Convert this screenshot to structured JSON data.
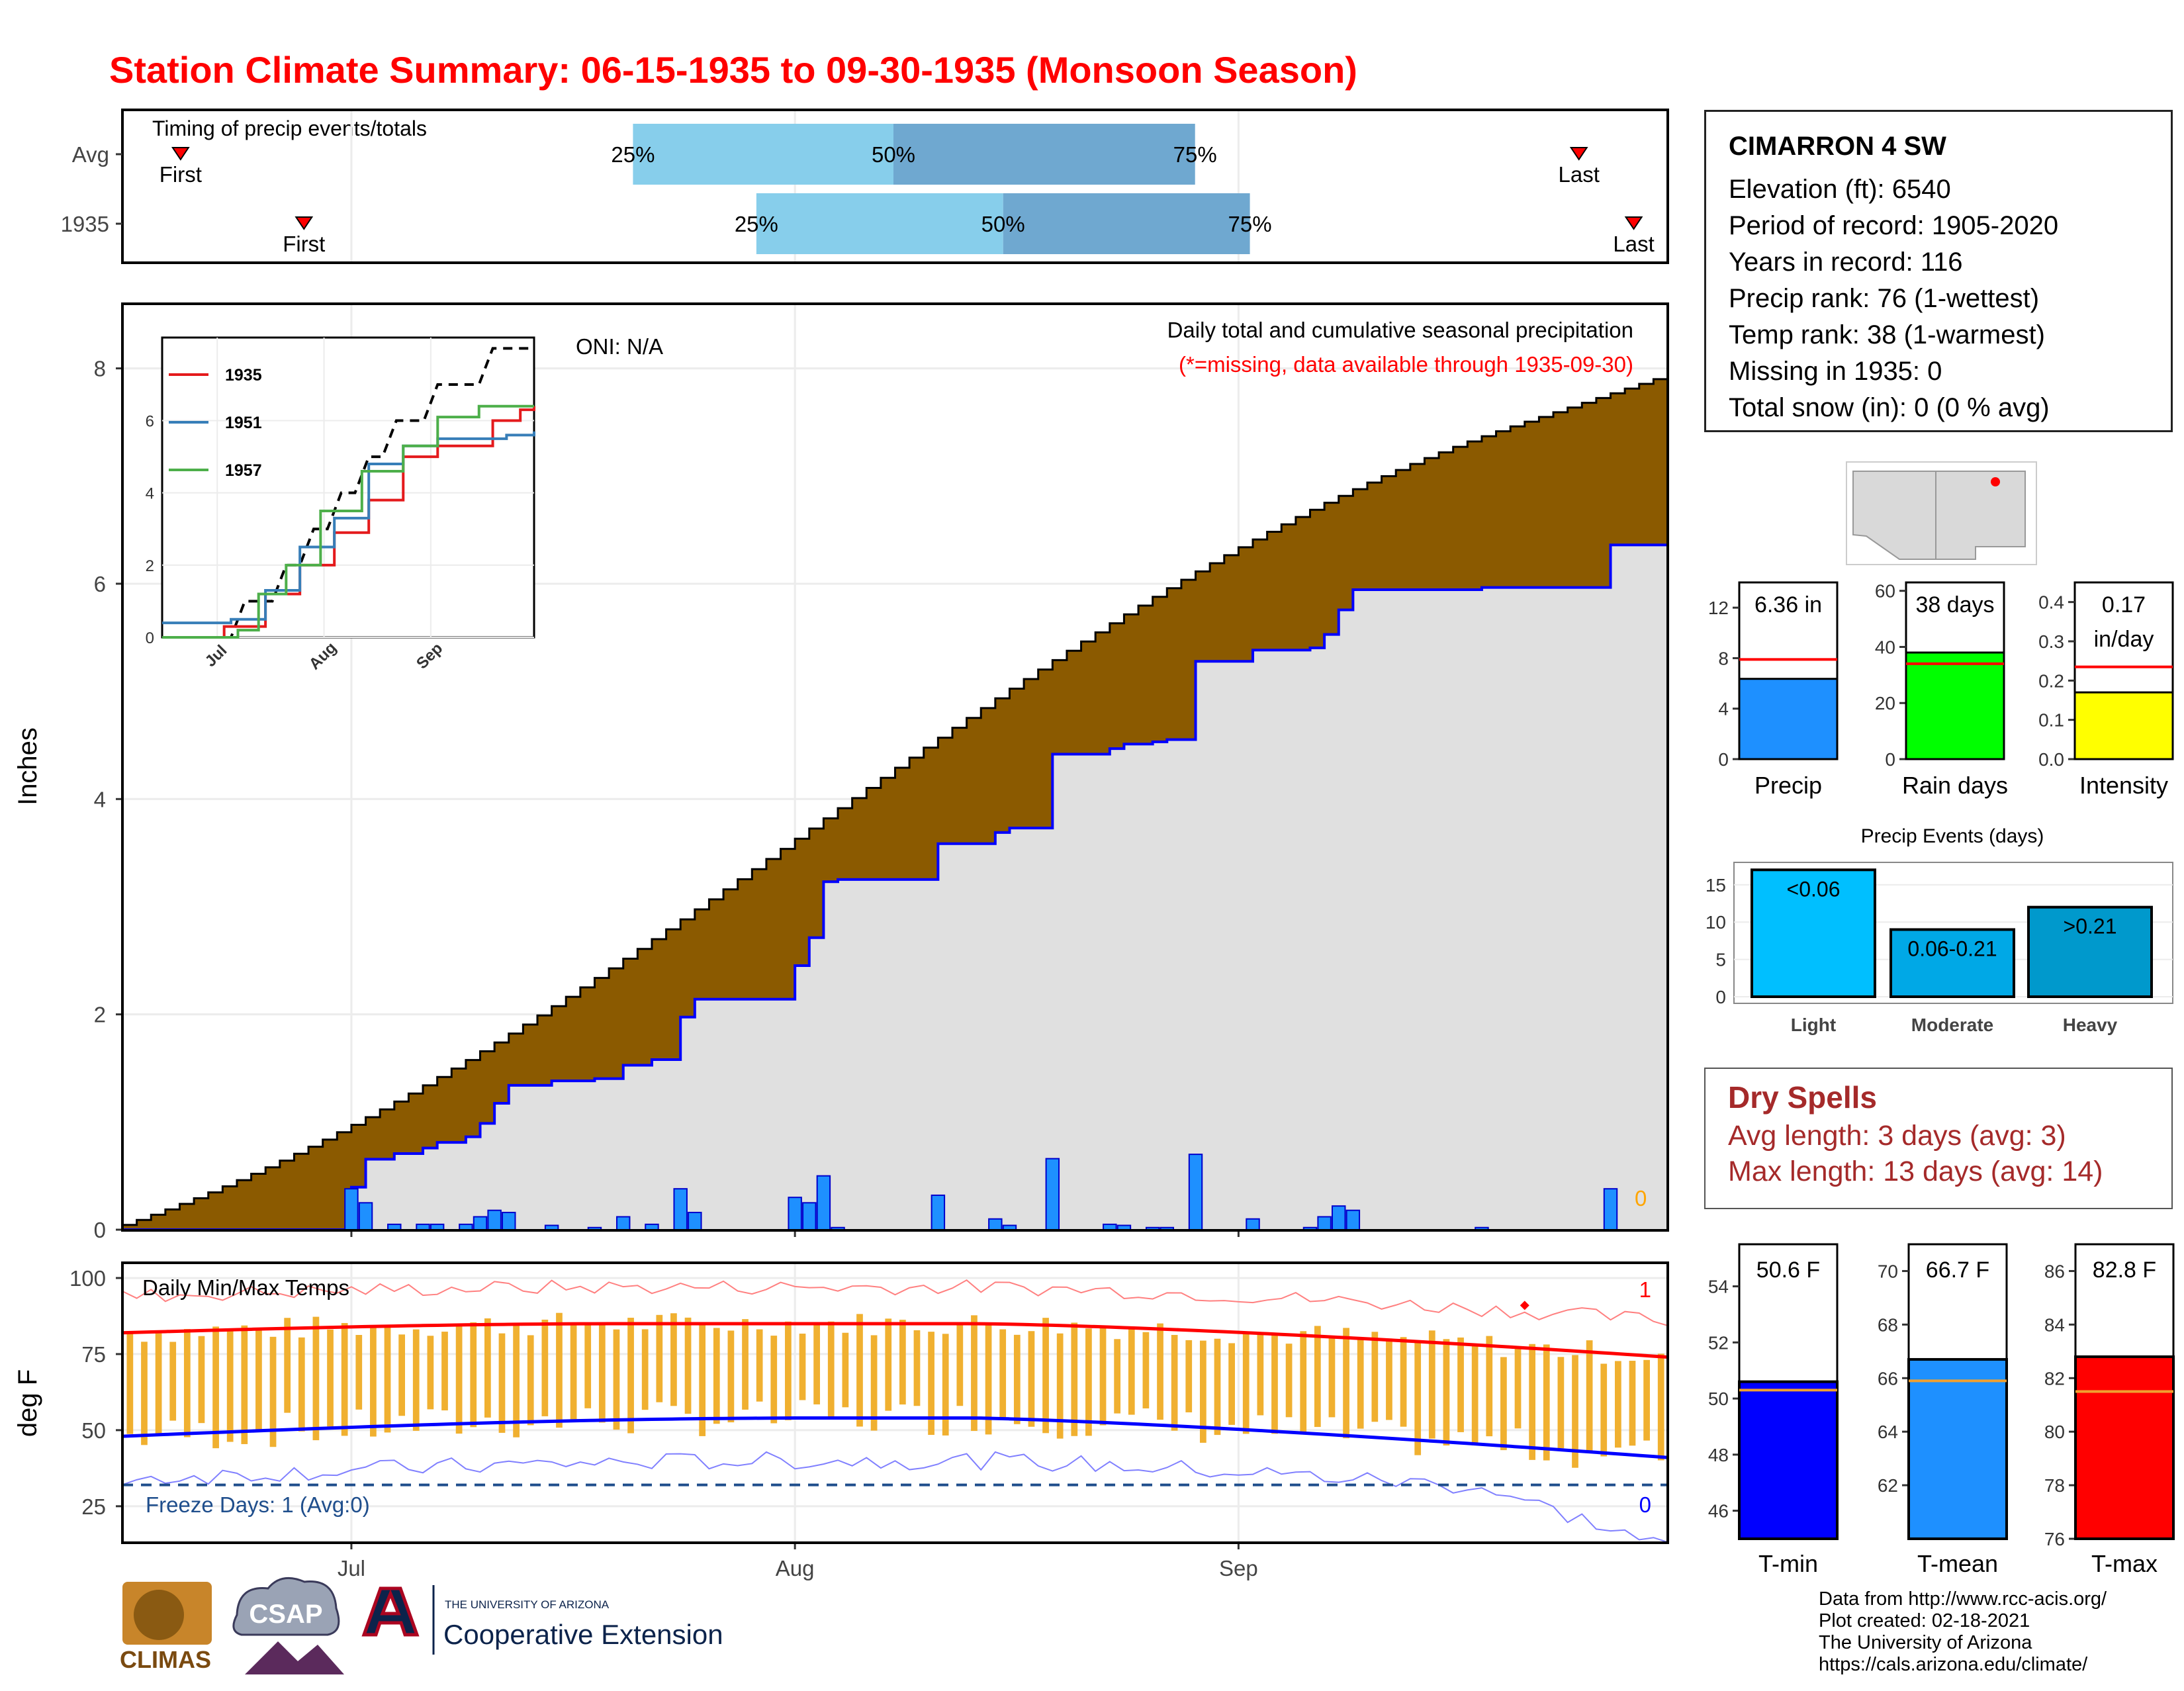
{
  "title": "Station Climate Summary: 06-15-1935 to 09-30-1935 (Monsoon Season)",
  "timing": {
    "panel_label": "Timing of precip events/totals",
    "rows": [
      {
        "label": "Avg",
        "first_day": 4,
        "p25_day": 37,
        "p50_day": 56,
        "p75_day": 78,
        "last_day": 106,
        "first_label": "First",
        "last_label": "Last",
        "p25_label": "25%",
        "p50_label": "50%",
        "p75_label": "75%"
      },
      {
        "label": "1935",
        "first_day": 13,
        "p25_day": 46,
        "p50_day": 64,
        "p75_day": 82,
        "last_day": 110,
        "first_label": "First",
        "last_label": "Last",
        "p25_label": "25%",
        "p50_label": "50%",
        "p75_label": "75%"
      }
    ]
  },
  "main": {
    "ylabel": "Inches",
    "oni": "ONI: N/A",
    "note1": "Daily total and cumulative seasonal precipitation",
    "note2": "(*=missing, data available through 1935-09-30)",
    "missing_count": "0",
    "yticks": [
      "0",
      "2",
      "4",
      "6",
      "8"
    ]
  },
  "inset": {
    "xticks": [
      "Jul",
      "Aug",
      "Sep"
    ],
    "yticks": [
      "0",
      "2",
      "4",
      "6"
    ],
    "legend": [
      {
        "name": "1935",
        "color": "#e41a1c"
      },
      {
        "name": "1951",
        "color": "#377eb8"
      },
      {
        "name": "1957",
        "color": "#4daf4a"
      }
    ]
  },
  "temps": {
    "panel_label": "Daily Min/Max Temps",
    "ylabel": "deg F",
    "freeze_text": "Freeze Days: 1 (Avg:0)",
    "max_record_count": "1",
    "min_record_count": "0",
    "yticks": [
      "25",
      "50",
      "75",
      "100"
    ],
    "xticks": [
      "Jul",
      "Aug",
      "Sep"
    ]
  },
  "station": {
    "name": "CIMARRON 4 SW",
    "lines": [
      "Elevation (ft): 6540",
      "Period of record: 1905-2020",
      "Years in record: 116",
      "Precip rank: 76 (1-wettest)",
      "Temp rank: 38 (1-warmest)",
      "Missing in 1935: 0",
      "Total snow (in): 0 (0 % avg)"
    ]
  },
  "summary_bars": [
    {
      "label": "Precip",
      "value_text": "6.36 in",
      "value": 6.36,
      "avg": 7.9,
      "color": "#1e90ff",
      "ymax": 14,
      "ticks": [
        "0",
        "4",
        "8",
        "12"
      ],
      "tickvals": [
        0,
        4,
        8,
        12
      ]
    },
    {
      "label": "Rain days",
      "value_text": "38 days",
      "value": 38,
      "avg": 34,
      "color": "#00ff00",
      "ymax": 63,
      "ticks": [
        "0",
        "20",
        "40",
        "60"
      ],
      "tickvals": [
        0,
        20,
        40,
        60
      ]
    },
    {
      "label": "Intensity",
      "value_text": "0.17\nin/day",
      "value": 0.17,
      "avg": 0.235,
      "color": "#ffff00",
      "ymax": 0.45,
      "ticks": [
        "0.0",
        "0.1",
        "0.2",
        "0.3",
        "0.4"
      ],
      "tickvals": [
        0,
        0.1,
        0.2,
        0.3,
        0.4
      ]
    }
  ],
  "events": {
    "title": "Precip Events (days)",
    "bars": [
      {
        "label": "Light",
        "range": "<0.06",
        "value": 17,
        "color": "#00bfff"
      },
      {
        "label": "Moderate",
        "range": "0.06-0.21",
        "value": 9,
        "color": "#00a8e6"
      },
      {
        "label": "Heavy",
        "range": ">0.21",
        "value": 12,
        "color": "#0099cc"
      }
    ],
    "ticks": [
      "0",
      "5",
      "10",
      "15"
    ]
  },
  "dry_spells": {
    "title": "Dry Spells",
    "avg": "Avg length: 3 days (avg: 3)",
    "max": "Max length: 13 days (avg: 14)"
  },
  "temp_bars": [
    {
      "label": "T-min",
      "value_text": "50.6 F",
      "value": 50.6,
      "avg": 50.3,
      "color": "#0000ff",
      "ymin": 45,
      "ymax": 55.5,
      "ticks": [
        "46",
        "48",
        "50",
        "52",
        "54"
      ],
      "tickvals": [
        46,
        48,
        50,
        52,
        54
      ]
    },
    {
      "label": "T-mean",
      "value_text": "66.7 F",
      "value": 66.7,
      "avg": 65.9,
      "color": "#1e90ff",
      "ymin": 60,
      "ymax": 71,
      "ticks": [
        "62",
        "64",
        "66",
        "68",
        "70"
      ],
      "tickvals": [
        62,
        64,
        66,
        68,
        70
      ]
    },
    {
      "label": "T-max",
      "value_text": "82.8 F",
      "value": 82.8,
      "avg": 81.5,
      "color": "#ff0000",
      "ymin": 76,
      "ymax": 87,
      "ticks": [
        "76",
        "78",
        "80",
        "82",
        "84",
        "86"
      ],
      "tickvals": [
        76,
        78,
        80,
        82,
        84,
        86
      ]
    }
  ],
  "footer": [
    "Data from http://www.rcc-acis.org/",
    "Plot created: 02-18-2021",
    "The University of Arizona",
    "https://cals.arizona.edu/climate/"
  ],
  "logos": {
    "climas": "CLIMAS",
    "csap": "CSAP",
    "ua_small": "THE UNIVERSITY OF ARIZONA",
    "ua_big": "Cooperative Extension"
  },
  "chart_data": {
    "type": "area",
    "x_start": "1935-06-15",
    "x_end": "1935-09-30",
    "ylim": [
      0,
      8.6
    ],
    "precip_daily": [
      {
        "day": 16,
        "value": 0.38
      },
      {
        "day": 17,
        "value": 0.25
      },
      {
        "day": 19,
        "value": 0.05
      },
      {
        "day": 21,
        "value": 0.05
      },
      {
        "day": 22,
        "value": 0.05
      },
      {
        "day": 24,
        "value": 0.05
      },
      {
        "day": 25,
        "value": 0.12
      },
      {
        "day": 26,
        "value": 0.18
      },
      {
        "day": 27,
        "value": 0.16
      },
      {
        "day": 30,
        "value": 0.04
      },
      {
        "day": 33,
        "value": 0.02
      },
      {
        "day": 35,
        "value": 0.12
      },
      {
        "day": 37,
        "value": 0.05
      },
      {
        "day": 39,
        "value": 0.38
      },
      {
        "day": 40,
        "value": 0.16
      },
      {
        "day": 47,
        "value": 0.3
      },
      {
        "day": 48,
        "value": 0.25
      },
      {
        "day": 49,
        "value": 0.5
      },
      {
        "day": 50,
        "value": 0.02
      },
      {
        "day": 57,
        "value": 0.32
      },
      {
        "day": 61,
        "value": 0.1
      },
      {
        "day": 62,
        "value": 0.04
      },
      {
        "day": 65,
        "value": 0.66
      },
      {
        "day": 69,
        "value": 0.05
      },
      {
        "day": 70,
        "value": 0.04
      },
      {
        "day": 72,
        "value": 0.02
      },
      {
        "day": 73,
        "value": 0.02
      },
      {
        "day": 75,
        "value": 0.7
      },
      {
        "day": 79,
        "value": 0.1
      },
      {
        "day": 83,
        "value": 0.02
      },
      {
        "day": 84,
        "value": 0.12
      },
      {
        "day": 85,
        "value": 0.22
      },
      {
        "day": 86,
        "value": 0.18
      },
      {
        "day": 95,
        "value": 0.02
      },
      {
        "day": 104,
        "value": 0.38
      }
    ],
    "avg_cumulative_end": 7.9,
    "year_cumulative_end": 6.36,
    "temps": {
      "max_avg_start": 82,
      "max_avg_peak": 85,
      "max_avg_end": 74,
      "min_avg_start": 48,
      "min_avg_peak": 54,
      "min_avg_end": 41
    }
  }
}
